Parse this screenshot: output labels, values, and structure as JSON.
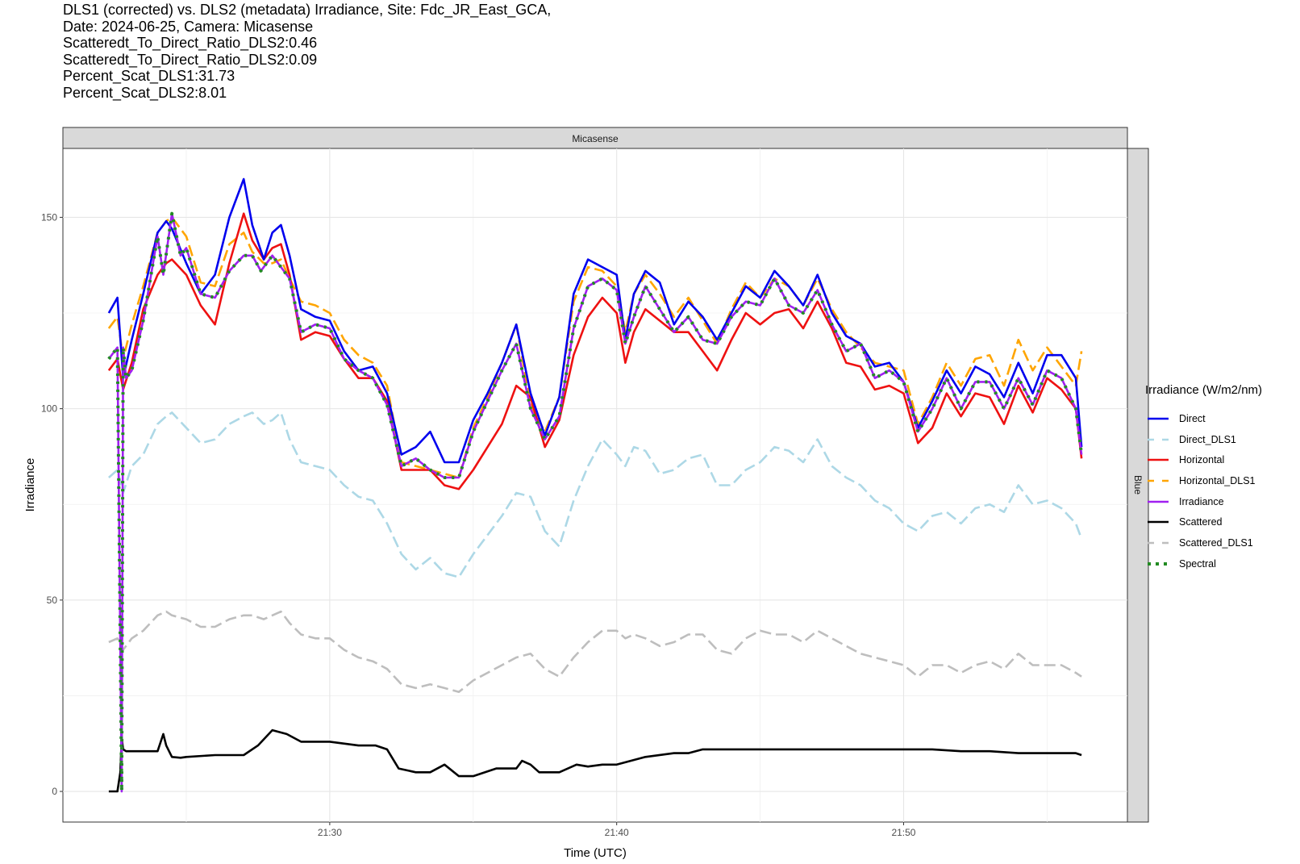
{
  "title_lines": [
    "DLS1 (corrected) vs. DLS2 (metadata) Irradiance, Site: Fdc_JR_East_GCA,",
    "",
    "Date: 2024-06-25, Camera: Micasense",
    "Scatteredt_To_Direct_Ratio_DLS2:0.46",
    "Scatteredt_To_Direct_Ratio_DLS2:0.09",
    "Percent_Scat_DLS1:31.73",
    "Percent_Scat_DLS2:8.01"
  ],
  "chart_data": {
    "type": "line",
    "facet_top": "Micasense",
    "facet_right": "Blue",
    "xlabel": "Time (UTC)",
    "ylabel": "Irradiance",
    "x_ticks": [
      "21:30",
      "21:40",
      "21:50"
    ],
    "x_tick_values": [
      30,
      40,
      50
    ],
    "xlim": [
      20.7,
      57.8
    ],
    "y_ticks": [
      0,
      50,
      100,
      150
    ],
    "ylim": [
      -8,
      168
    ],
    "grid": true,
    "legend_title": "Irradiance (W/m2/nm)",
    "legend_position": "right",
    "series": [
      {
        "name": "Direct",
        "color": "#0000ee",
        "dash": "solid",
        "x": [
          22.3,
          22.6,
          22.8,
          23.1,
          23.5,
          24,
          24.3,
          24.5,
          25,
          25.5,
          26,
          26.5,
          27,
          27.3,
          27.7,
          28,
          28.3,
          28.6,
          29,
          29.5,
          30,
          30.5,
          31,
          31.5,
          32,
          32.5,
          33,
          33.5,
          34,
          34.5,
          35,
          35.5,
          36,
          36.5,
          37,
          37.5,
          38,
          38.5,
          39,
          39.5,
          40,
          40.3,
          40.6,
          41,
          41.5,
          42,
          42.5,
          43,
          43.5,
          44,
          44.5,
          45,
          45.5,
          46,
          46.5,
          47,
          47.5,
          48,
          48.5,
          49,
          49.5,
          50,
          50.5,
          51,
          51.5,
          52,
          52.5,
          53,
          53.5,
          54,
          54.5,
          55,
          55.5,
          56,
          56.2
        ],
        "y": [
          125,
          129,
          108,
          118,
          130,
          146,
          149,
          147,
          138,
          130,
          135,
          150,
          160,
          148,
          139,
          146,
          148,
          140,
          126,
          124,
          123,
          115,
          110,
          111,
          104,
          88,
          90,
          94,
          86,
          86,
          97,
          104,
          112,
          122,
          104,
          93,
          103,
          130,
          139,
          137,
          135,
          118,
          130,
          136,
          133,
          122,
          128,
          124,
          118,
          125,
          132,
          129,
          136,
          132,
          127,
          135,
          125,
          119,
          117,
          111,
          112,
          107,
          95,
          102,
          110,
          104,
          111,
          109,
          103,
          112,
          104,
          114,
          114,
          108,
          90
        ]
      },
      {
        "name": "Horizontal",
        "color": "#ee1111",
        "dash": "solid",
        "x": [
          22.3,
          22.6,
          22.8,
          23.1,
          23.5,
          24,
          24.3,
          24.5,
          25,
          25.5,
          26,
          26.5,
          27,
          27.3,
          27.7,
          28,
          28.3,
          28.6,
          29,
          29.5,
          30,
          30.5,
          31,
          31.5,
          32,
          32.5,
          33,
          33.5,
          34,
          34.5,
          35,
          35.5,
          36,
          36.5,
          37,
          37.5,
          38,
          38.5,
          39,
          39.5,
          40,
          40.3,
          40.6,
          41,
          41.5,
          42,
          42.5,
          43,
          43.5,
          44,
          44.5,
          45,
          45.5,
          46,
          46.5,
          47,
          47.5,
          48,
          48.5,
          49,
          49.5,
          50,
          50.5,
          51,
          51.5,
          52,
          52.5,
          53,
          53.5,
          54,
          54.5,
          55,
          55.5,
          56,
          56.2
        ],
        "y": [
          110,
          113,
          105,
          112,
          126,
          135,
          138,
          139,
          135,
          127,
          122,
          138,
          151,
          144,
          139,
          142,
          143,
          135,
          118,
          120,
          119,
          113,
          108,
          108,
          102,
          84,
          84,
          84,
          80,
          79,
          84,
          90,
          96,
          106,
          103,
          90,
          97,
          114,
          124,
          129,
          125,
          112,
          120,
          126,
          123,
          120,
          120,
          115,
          110,
          118,
          125,
          122,
          125,
          126,
          121,
          128,
          121,
          112,
          111,
          105,
          106,
          104,
          91,
          95,
          104,
          98,
          104,
          103,
          96,
          106,
          99,
          108,
          105,
          100,
          87
        ]
      },
      {
        "name": "Irradiance",
        "color": "#a020f0",
        "dash": "solid",
        "x": [
          22.3,
          22.6,
          22.75,
          22.8,
          22.9,
          23.1,
          23.5,
          24,
          24.2,
          24.5,
          24.8,
          25,
          25.5,
          26,
          26.5,
          27,
          27.3,
          27.6,
          28,
          28.3,
          28.6,
          29,
          29.5,
          30,
          30.5,
          31,
          31.5,
          32,
          32.5,
          33,
          33.5,
          34,
          34.5,
          35,
          35.5,
          36,
          36.5,
          37,
          37.5,
          38,
          38.5,
          39,
          39.5,
          40,
          40.3,
          40.6,
          41,
          41.5,
          42,
          42.5,
          43,
          43.5,
          44,
          44.5,
          45,
          45.5,
          46,
          46.5,
          47,
          47.5,
          48,
          48.5,
          49,
          49.5,
          50,
          50.5,
          51,
          51.5,
          52,
          52.5,
          53,
          53.5,
          54,
          54.5,
          55,
          55.5,
          56,
          56.2
        ],
        "y": [
          113,
          116,
          0,
          116,
          108,
          110,
          123,
          145,
          135,
          151,
          140,
          142,
          130,
          129,
          136,
          140,
          140,
          136,
          140,
          137,
          134,
          120,
          122,
          121,
          113,
          110,
          108,
          101,
          85,
          87,
          84,
          82,
          82,
          94,
          102,
          110,
          117,
          100,
          92,
          98,
          121,
          132,
          134,
          131,
          117,
          124,
          132,
          126,
          120,
          124,
          118,
          117,
          124,
          128,
          127,
          134,
          127,
          125,
          131,
          122,
          115,
          117,
          108,
          110,
          107,
          94,
          100,
          108,
          100,
          107,
          107,
          100,
          108,
          101,
          110,
          108,
          100,
          88
        ]
      },
      {
        "name": "Scattered",
        "color": "#000000",
        "dash": "solid",
        "x": [
          22.3,
          22.6,
          22.7,
          22.75,
          22.8,
          22.9,
          23,
          24,
          24.2,
          24.3,
          24.5,
          24.8,
          25,
          26,
          27,
          27.5,
          28,
          28.5,
          29,
          30,
          31,
          31.6,
          32,
          32.4,
          33,
          33.5,
          34,
          34.5,
          35,
          35.8,
          36.5,
          36.7,
          37,
          37.3,
          37.5,
          38,
          38.3,
          38.6,
          39,
          39.5,
          40,
          41,
          42,
          42.5,
          43,
          44,
          45,
          46,
          47,
          48,
          49,
          50,
          51,
          52,
          53,
          54,
          55,
          56,
          56.2
        ],
        "y": [
          0,
          0,
          5,
          14,
          11,
          10.5,
          10.5,
          10.5,
          15,
          12,
          9,
          8.8,
          9,
          9.5,
          9.5,
          12,
          16,
          15,
          13,
          13,
          12,
          12,
          11,
          6,
          5,
          5,
          7,
          4,
          4,
          6,
          6,
          8,
          7,
          5,
          5,
          5,
          6,
          7,
          6.5,
          7,
          7,
          9,
          10,
          10,
          11,
          11,
          11,
          11,
          11,
          11,
          11,
          11,
          11,
          10.5,
          10.5,
          10,
          10,
          10,
          9.5
        ]
      },
      {
        "name": "Direct_DLS1",
        "color": "#add8e6",
        "dash": "14,6",
        "x": [
          22.3,
          22.6,
          22.8,
          23.1,
          23.5,
          24,
          24.3,
          24.5,
          25,
          25.5,
          26,
          26.5,
          27,
          27.3,
          27.7,
          28,
          28.3,
          28.6,
          29,
          29.5,
          30,
          30.5,
          31,
          31.5,
          32,
          32.5,
          33,
          33.5,
          34,
          34.5,
          35,
          35.5,
          36,
          36.5,
          37,
          37.5,
          38,
          38.5,
          39,
          39.5,
          40,
          40.3,
          40.6,
          41,
          41.5,
          42,
          42.5,
          43,
          43.5,
          44,
          44.5,
          45,
          45.5,
          46,
          46.5,
          47,
          47.5,
          48,
          48.5,
          49,
          49.5,
          50,
          50.5,
          51,
          51.5,
          52,
          52.5,
          53,
          53.5,
          54,
          54.5,
          55,
          55.5,
          56,
          56.2
        ],
        "y": [
          82,
          84,
          78,
          85,
          88,
          96,
          98,
          99,
          95,
          91,
          92,
          96,
          98,
          99,
          96,
          97,
          99,
          92,
          86,
          85,
          84,
          80,
          77,
          76,
          70,
          62,
          58,
          61,
          57,
          56,
          62,
          67,
          72,
          78,
          77,
          68,
          64,
          76,
          85,
          92,
          88,
          85,
          90,
          89,
          83,
          84,
          87,
          88,
          80,
          80,
          84,
          86,
          90,
          89,
          86,
          92,
          85,
          82,
          80,
          76,
          74,
          70,
          68,
          72,
          73,
          70,
          74,
          75,
          73,
          80,
          75,
          76,
          74,
          70,
          66
        ]
      },
      {
        "name": "Horizontal_DLS1",
        "color": "#ffa500",
        "dash": "14,6",
        "x": [
          22.3,
          22.6,
          22.8,
          23.1,
          23.5,
          24,
          24.3,
          24.5,
          25,
          25.5,
          26,
          26.5,
          27,
          27.3,
          27.7,
          28,
          28.3,
          28.6,
          29,
          29.5,
          30,
          30.5,
          31,
          31.5,
          32,
          32.5,
          33,
          33.5,
          34,
          34.5,
          35,
          35.5,
          36,
          36.5,
          37,
          37.5,
          38,
          38.5,
          39,
          39.5,
          40,
          40.3,
          40.6,
          41,
          41.5,
          42,
          42.5,
          43,
          43.5,
          44,
          44.5,
          45,
          45.5,
          46,
          46.5,
          47,
          47.5,
          48,
          48.5,
          49,
          49.5,
          50,
          50.5,
          51,
          51.5,
          52,
          52.5,
          53,
          53.5,
          54,
          54.5,
          55,
          55.5,
          56,
          56.2
        ],
        "y": [
          121,
          124,
          113,
          122,
          132,
          146,
          149,
          150,
          145,
          133,
          132,
          143,
          146,
          141,
          138,
          138,
          139,
          134,
          128,
          127,
          125,
          118,
          114,
          112,
          106,
          86,
          85,
          84,
          83,
          82,
          95,
          103,
          112,
          122,
          101,
          94,
          103,
          128,
          137,
          136,
          132,
          120,
          130,
          135,
          130,
          124,
          129,
          123,
          117,
          126,
          133,
          129,
          134,
          132,
          127,
          134,
          126,
          120,
          116,
          112,
          111,
          110,
          96,
          103,
          112,
          106,
          113,
          114,
          106,
          118,
          110,
          116,
          111,
          106,
          115
        ]
      },
      {
        "name": "Scattered_DLS1",
        "color": "#bebebe",
        "dash": "14,6",
        "x": [
          22.3,
          22.6,
          22.8,
          23.1,
          23.5,
          24,
          24.3,
          24.5,
          25,
          25.5,
          26,
          26.5,
          27,
          27.3,
          27.7,
          28,
          28.3,
          28.6,
          29,
          29.5,
          30,
          30.5,
          31,
          31.5,
          32,
          32.5,
          33,
          33.5,
          34,
          34.5,
          35,
          35.5,
          36,
          36.5,
          37,
          37.5,
          38,
          38.5,
          39,
          39.5,
          40,
          40.3,
          40.6,
          41,
          41.5,
          42,
          42.5,
          43,
          43.5,
          44,
          44.5,
          45,
          45.5,
          46,
          46.5,
          47,
          47.5,
          48,
          48.5,
          49,
          49.5,
          50,
          50.5,
          51,
          51.5,
          52,
          52.5,
          53,
          53.5,
          54,
          54.5,
          55,
          55.5,
          56,
          56.2
        ],
        "y": [
          39,
          40,
          37,
          40,
          42,
          46,
          47,
          46,
          45,
          43,
          43,
          45,
          46,
          46,
          45,
          46,
          47,
          44,
          41,
          40,
          40,
          37,
          35,
          34,
          32,
          28,
          27,
          28,
          27,
          26,
          29,
          31,
          33,
          35,
          36,
          32,
          30,
          35,
          39,
          42,
          42,
          40,
          41,
          40,
          38,
          39,
          41,
          41,
          37,
          36,
          40,
          42,
          41,
          41,
          39,
          42,
          40,
          38,
          36,
          35,
          34,
          33,
          30,
          33,
          33,
          31,
          33,
          34,
          32,
          36,
          33,
          33,
          33,
          31,
          30
        ]
      },
      {
        "name": "Spectral",
        "color": "#228b22",
        "dash": "3,7",
        "x": [
          22.3,
          22.6,
          22.75,
          22.8,
          22.9,
          23.1,
          23.5,
          24,
          24.2,
          24.5,
          24.8,
          25,
          25.5,
          26,
          26.5,
          27,
          27.3,
          27.6,
          28,
          28.3,
          28.6,
          29,
          29.5,
          30,
          30.5,
          31,
          31.5,
          32,
          32.5,
          33,
          33.5,
          34,
          34.5,
          35,
          35.5,
          36,
          36.5,
          37,
          37.5,
          38,
          38.5,
          39,
          39.5,
          40,
          40.3,
          40.6,
          41,
          41.5,
          42,
          42.5,
          43,
          43.5,
          44,
          44.5,
          45,
          45.5,
          46,
          46.5,
          47,
          47.5,
          48,
          48.5,
          49,
          49.5,
          50,
          50.5,
          51,
          51.5,
          52,
          52.5,
          53,
          53.5,
          54,
          54.5,
          55,
          55.5,
          56,
          56.2
        ],
        "y": [
          113,
          116,
          0,
          116,
          108,
          110,
          123,
          145,
          135,
          151,
          140,
          142,
          130,
          129,
          136,
          140,
          140,
          136,
          140,
          137,
          134,
          120,
          122,
          121,
          113,
          110,
          108,
          101,
          85,
          87,
          84,
          82,
          82,
          94,
          102,
          110,
          117,
          100,
          92,
          98,
          121,
          132,
          134,
          131,
          117,
          124,
          132,
          126,
          120,
          124,
          118,
          117,
          124,
          128,
          127,
          134,
          127,
          125,
          131,
          122,
          115,
          117,
          108,
          110,
          107,
          94,
          100,
          108,
          100,
          107,
          107,
          100,
          108,
          101,
          110,
          108,
          100,
          88
        ]
      }
    ],
    "legend_order": [
      "Direct",
      "Direct_DLS1",
      "Horizontal",
      "Horizontal_DLS1",
      "Irradiance",
      "Scattered",
      "Scattered_DLS1",
      "Spectral"
    ]
  }
}
